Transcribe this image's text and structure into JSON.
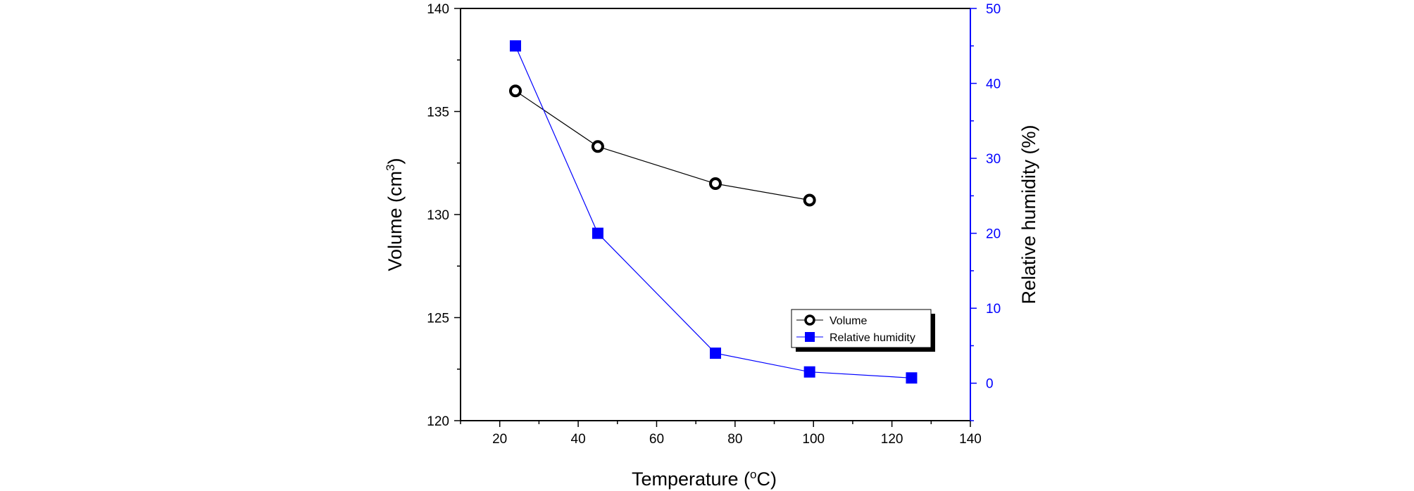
{
  "chart_data": {
    "type": "line",
    "xlabel": "Temperature (°C)",
    "xlabel_parts": [
      "Temperature (",
      "o",
      "C)"
    ],
    "ylabel_left": "Volume (cm3)",
    "ylabel_left_parts": [
      "Volume (cm",
      "3",
      ")"
    ],
    "ylabel_right": "Relative humidity (%)",
    "xlim": [
      10,
      140
    ],
    "ylim_left": [
      120,
      140
    ],
    "ylim_right": [
      -5,
      50
    ],
    "x_ticks": [
      "20",
      "40",
      "60",
      "80",
      "100",
      "120",
      "140"
    ],
    "y_left_ticks": [
      "120",
      "125",
      "130",
      "135",
      "140"
    ],
    "y_right_ticks": [
      "0",
      "10",
      "20",
      "30",
      "40",
      "50"
    ],
    "grid": false,
    "legend_position": "lower-right",
    "series": [
      {
        "name": "Volume",
        "axis": "left",
        "color": "#000000",
        "marker": "open-circle",
        "x": [
          24,
          45,
          75,
          99
        ],
        "y": [
          136.0,
          133.3,
          131.5,
          130.7
        ]
      },
      {
        "name": "Relative humidity",
        "axis": "right",
        "color": "#0000ff",
        "marker": "filled-square",
        "x": [
          24,
          45,
          75,
          99,
          125
        ],
        "y": [
          45.0,
          20.0,
          4.0,
          1.5,
          0.7
        ]
      }
    ]
  }
}
